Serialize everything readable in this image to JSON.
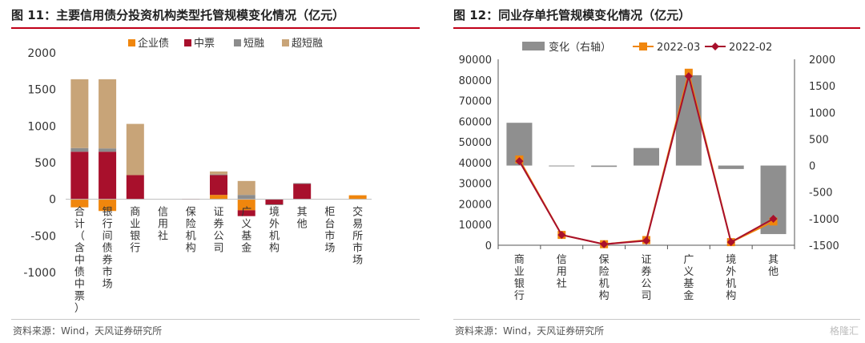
{
  "left": {
    "title": "图 11：主要信用债分投资机构类型托管规模变化情况（亿元）",
    "source": "资料来源：Wind，天风证券研究所"
  },
  "right": {
    "title": "图 12：同业存单托管规模变化情况（亿元）",
    "source": "资料来源：Wind，天风证券研究所",
    "watermark": "格隆汇"
  },
  "colors": {
    "orange": "#f0860d",
    "crimson": "#a8102c",
    "gray": "#8c8c8c",
    "tan": "#c8a478",
    "barGray": "#8f8f8f",
    "rule": "#c00018"
  },
  "chart_data": [
    {
      "type": "bar",
      "stacked": true,
      "title": "图 11：主要信用债分投资机构类型托管规模变化情况（亿元）",
      "categories": [
        "合计（含中债中票）",
        "银行间债券市场",
        "商业银行",
        "信用社",
        "保险机构",
        "证券公司",
        "广义基金",
        "境外机构",
        "其他",
        "柜台市场",
        "交易所市场"
      ],
      "series": [
        {
          "name": "企业债",
          "values": [
            -110,
            -160,
            0,
            0,
            0,
            60,
            -150,
            0,
            0,
            0,
            55
          ]
        },
        {
          "name": "中票",
          "values": [
            650,
            650,
            330,
            0,
            5,
            270,
            -80,
            -70,
            210,
            0,
            0
          ]
        },
        {
          "name": "短融",
          "values": [
            50,
            45,
            0,
            0,
            0,
            10,
            60,
            -10,
            10,
            0,
            0
          ]
        },
        {
          "name": "超短融",
          "values": [
            940,
            945,
            700,
            0,
            0,
            40,
            190,
            0,
            0,
            0,
            0
          ]
        }
      ],
      "ylim": [
        -1000,
        2000
      ],
      "yticks": [
        -1000,
        -500,
        0,
        500,
        1000,
        1500,
        2000
      ],
      "legend": "top",
      "grid": false
    },
    {
      "type": "bar+line",
      "title": "图 12：同业存单托管规模变化情况（亿元）",
      "categories": [
        "商业银行",
        "信用社",
        "保险机构",
        "证券公司",
        "广义基金",
        "境外机构",
        "其他"
      ],
      "series": [
        {
          "name": "变化（右轴）",
          "type": "bar",
          "axis": "right",
          "values": [
            805,
            -15,
            -25,
            330,
            1700,
            -65,
            -1290
          ]
        },
        {
          "name": "2022-03",
          "type": "line",
          "axis": "left",
          "values": [
            41500,
            5000,
            500,
            2500,
            83500,
            1500,
            11500
          ]
        },
        {
          "name": "2022-02",
          "type": "line",
          "axis": "left",
          "values": [
            40700,
            5000,
            500,
            2200,
            81800,
            1500,
            12800
          ]
        }
      ],
      "ylim_left": [
        0,
        90000
      ],
      "yticks_left": [
        0,
        10000,
        20000,
        30000,
        40000,
        50000,
        60000,
        70000,
        80000,
        90000
      ],
      "ylim_right": [
        -1500,
        2000
      ],
      "yticks_right": [
        -1500,
        -1000,
        -500,
        0,
        500,
        1000,
        1500,
        2000
      ],
      "legend": "top",
      "grid": false
    }
  ]
}
